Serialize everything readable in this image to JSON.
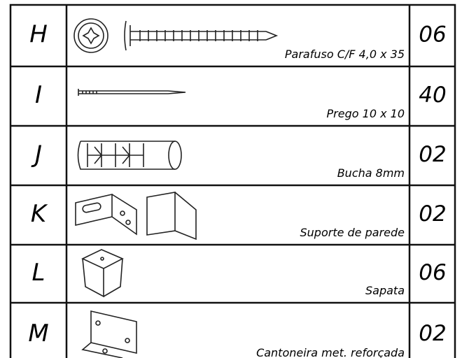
{
  "table": {
    "rows": [
      [
        "H",
        "Parafuso C/F 4,0 x 35",
        "06"
      ],
      [
        "I",
        "Prego 10 x 10",
        "40"
      ],
      [
        "J",
        "Bucha 8mm",
        "02"
      ],
      [
        "K",
        "Suporte de parede",
        "02"
      ],
      [
        "L",
        "Sapata",
        "06"
      ],
      [
        "M",
        "Cantoneira met. reforçada",
        "02"
      ]
    ]
  }
}
